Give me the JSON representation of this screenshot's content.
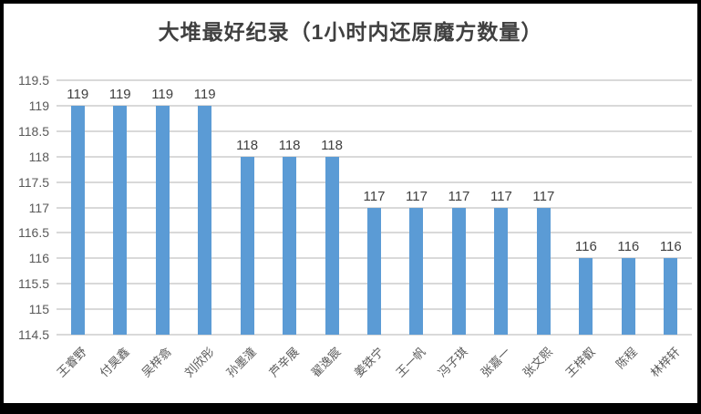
{
  "title": "大堆最好纪录（1小时内还原魔方数量）",
  "colors": {
    "bar": "#5b9bd5",
    "gridline": "#d9d9d9",
    "title_text": "#404040",
    "tick_text": "#595959",
    "data_label_text": "#404040",
    "frame": "#000000",
    "background": "#ffffff"
  },
  "chart_data": {
    "type": "bar",
    "title": "大堆最好纪录（1小时内还原魔方数量）",
    "categories": [
      "王睿野",
      "付昊鑫",
      "吴梓翕",
      "刘欣彤",
      "孙墨潼",
      "芦辛展",
      "翟逸宸",
      "姜铁宁",
      "王一帆",
      "冯子琪",
      "张嘉一",
      "张文熙",
      "王梓叡",
      "陈程",
      "林梓轩"
    ],
    "values": [
      119,
      119,
      119,
      119,
      118,
      118,
      118,
      117,
      117,
      117,
      117,
      117,
      116,
      116,
      116
    ],
    "data_labels": [
      "119",
      "119",
      "119",
      "119",
      "118",
      "118",
      "118",
      "117",
      "117",
      "117",
      "117",
      "117",
      "116",
      "116",
      "116"
    ],
    "xlabel": "",
    "ylabel": "",
    "ylim": [
      114.5,
      119.5
    ],
    "yticks": [
      119.5,
      119,
      118.5,
      118,
      117.5,
      117,
      116.5,
      116,
      115.5,
      115,
      114.5
    ],
    "ytick_labels": [
      "119.5",
      "119",
      "118.5",
      "118",
      "117.5",
      "117",
      "116.5",
      "116",
      "115.5",
      "115",
      "114.5"
    ],
    "grid": true,
    "legend": false,
    "x_label_rotation_deg": 45
  }
}
